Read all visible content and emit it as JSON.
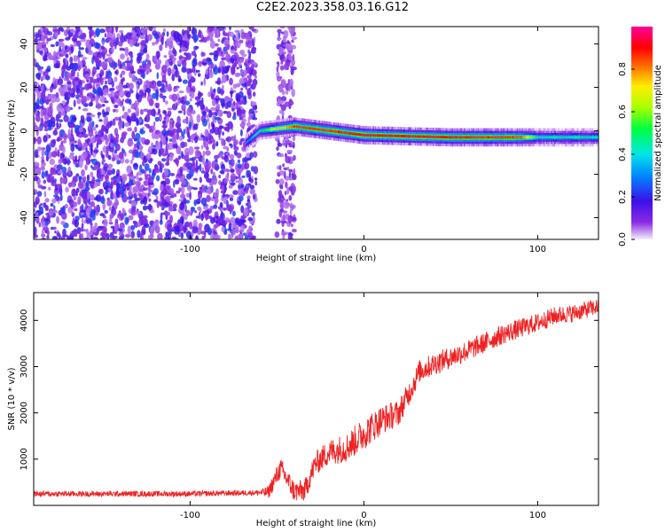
{
  "title": "C2E2.2023.358.03.16.G12",
  "chart_data": [
    {
      "type": "heatmap",
      "title": "C2E2.2023.358.03.16.G12",
      "xlabel": "Height of straight line (km)",
      "ylabel": "Frequency (Hz)",
      "xlim": [
        -190,
        135
      ],
      "ylim": [
        -50,
        48
      ],
      "xticks": [
        -100,
        0,
        100
      ],
      "yticks": [
        -40,
        -20,
        0,
        20,
        40
      ],
      "colorbar": {
        "label": "Normalized spectral amplitude",
        "range": [
          0.0,
          1.0
        ],
        "ticks": [
          0.0,
          0.2,
          0.4,
          0.6,
          0.8
        ],
        "colormap": "rainbow (violet-blue-cyan-green-yellow-red-magenta)"
      },
      "regions": [
        {
          "description": "broadband noise, low amplitude",
          "x_range": [
            -190,
            -62
          ],
          "freq_range": [
            -50,
            48
          ],
          "amplitude": [
            0.05,
            0.25
          ]
        },
        {
          "description": "noise strip",
          "x_range": [
            -50,
            -40
          ],
          "freq_range": [
            -50,
            48
          ],
          "amplitude": [
            0.05,
            0.15
          ]
        },
        {
          "description": "narrow carrier line",
          "x_range": [
            -68,
            135
          ],
          "centre_frequency": [
            [
              -70,
              -7
            ],
            [
              -60,
              0
            ],
            [
              -40,
              2
            ],
            [
              -20,
              0
            ],
            [
              0,
              -2
            ],
            [
              50,
              -3
            ],
            [
              100,
              -3
            ],
            [
              135,
              -3
            ]
          ],
          "peak_amplitude": [
            [
              -70,
              0.25
            ],
            [
              -40,
              0.85
            ],
            [
              0,
              0.9
            ],
            [
              40,
              0.9
            ],
            [
              90,
              0.85
            ],
            [
              100,
              0.45
            ],
            [
              135,
              0.45
            ]
          ]
        }
      ]
    },
    {
      "type": "line",
      "xlabel": "Height of straight line (km)",
      "ylabel": "SNR (10 * v/v)",
      "xlim": [
        -190,
        135
      ],
      "ylim": [
        0,
        4600
      ],
      "xticks": [
        -100,
        0,
        100
      ],
      "yticks": [
        1000,
        2000,
        3000,
        4000
      ],
      "line_color": "#ee2222",
      "series": [
        {
          "points": [
            [
              -190,
              250
            ],
            [
              -150,
              250
            ],
            [
              -100,
              250
            ],
            [
              -70,
              270
            ],
            [
              -55,
              280
            ],
            [
              -48,
              800
            ],
            [
              -44,
              550
            ],
            [
              -40,
              300
            ],
            [
              -34,
              320
            ],
            [
              -28,
              900
            ],
            [
              -20,
              1150
            ],
            [
              -10,
              1250
            ],
            [
              0,
              1550
            ],
            [
              10,
              1850
            ],
            [
              20,
              2000
            ],
            [
              27,
              2500
            ],
            [
              32,
              2900
            ],
            [
              40,
              3050
            ],
            [
              60,
              3350
            ],
            [
              80,
              3700
            ],
            [
              100,
              3950
            ],
            [
              110,
              4100
            ],
            [
              120,
              4150
            ],
            [
              135,
              4300
            ]
          ],
          "noise_amplitude": [
            [
              -190,
              60
            ],
            [
              -60,
              60
            ],
            [
              -50,
              220
            ],
            [
              -30,
              250
            ],
            [
              0,
              350
            ],
            [
              30,
              250
            ],
            [
              135,
              180
            ]
          ]
        }
      ]
    }
  ]
}
